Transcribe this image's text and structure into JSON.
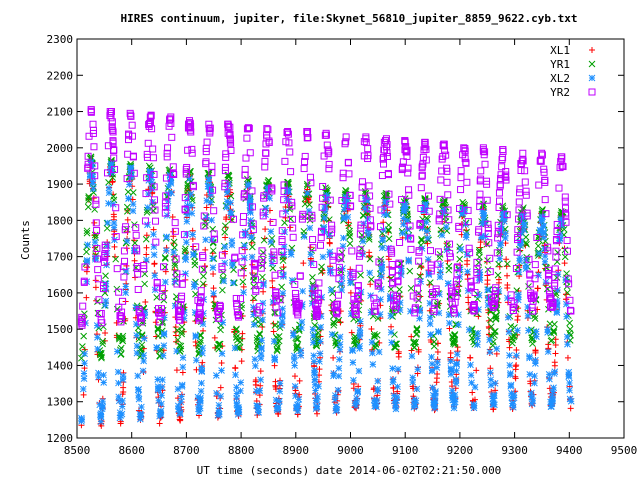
{
  "chart_data": {
    "type": "scatter",
    "title": "HIRES continuum, jupiter, file:Skynet_56810_jupiter_8859_9622.cyb.txt",
    "xlabel": "UT time (seconds) date 2014-06-02T02:21:50.000",
    "ylabel": "Counts",
    "xlim": [
      8500,
      9500
    ],
    "ylim": [
      1200,
      2300
    ],
    "xticks": [
      8500,
      8600,
      8700,
      8800,
      8900,
      9000,
      9100,
      9200,
      9300,
      9400,
      9500
    ],
    "yticks": [
      1200,
      1300,
      1400,
      1500,
      1600,
      1700,
      1800,
      1900,
      2000,
      2100,
      2200,
      2300
    ],
    "grid": false,
    "legend_position": "top-right",
    "pulse_centers": [
      8526,
      8562,
      8598,
      8634,
      8670,
      8706,
      8741,
      8777,
      8813,
      8849,
      8885,
      8921,
      8956,
      8992,
      9028,
      9064,
      9100,
      9136,
      9171,
      9207,
      9243,
      9279,
      9315,
      9350,
      9386
    ],
    "series": [
      {
        "name": "XL1",
        "marker": "plus",
        "color": "#ff0000",
        "minima": [
          1235,
          1240,
          1245,
          1250,
          1255,
          1258,
          1262,
          1265,
          1268,
          1270,
          1273,
          1275,
          1277,
          1280,
          1282,
          1284,
          1285,
          1286,
          1287,
          1288,
          1289,
          1290,
          1290,
          1290,
          1290
        ],
        "maxima": [
          1960,
          1950,
          1940,
          1935,
          1925,
          1920,
          1915,
          1905,
          1900,
          1895,
          1890,
          1880,
          1875,
          1870,
          1860,
          1855,
          1850,
          1845,
          1840,
          1835,
          1830,
          1825,
          1820,
          1815,
          1810
        ]
      },
      {
        "name": "YR1",
        "marker": "cross",
        "color": "#00a000",
        "minima": [
          1420,
          1430,
          1430,
          1435,
          1440,
          1440,
          1445,
          1445,
          1450,
          1450,
          1450,
          1455,
          1455,
          1455,
          1460,
          1460,
          1460,
          1460,
          1465,
          1465,
          1465,
          1465,
          1470,
          1470,
          1470
        ],
        "maxima": [
          1970,
          1960,
          1955,
          1945,
          1940,
          1930,
          1925,
          1920,
          1910,
          1905,
          1900,
          1895,
          1885,
          1880,
          1875,
          1870,
          1860,
          1855,
          1850,
          1845,
          1840,
          1835,
          1830,
          1825,
          1820
        ]
      },
      {
        "name": "XL2",
        "marker": "star",
        "color": "#1e90ff",
        "minima": [
          1255,
          1258,
          1262,
          1265,
          1268,
          1270,
          1272,
          1275,
          1278,
          1280,
          1282,
          1284,
          1285,
          1287,
          1288,
          1289,
          1290,
          1291,
          1292,
          1292,
          1293,
          1293,
          1294,
          1294,
          1294
        ],
        "maxima": [
          1960,
          1950,
          1940,
          1930,
          1925,
          1915,
          1910,
          1900,
          1895,
          1890,
          1880,
          1875,
          1870,
          1860,
          1855,
          1850,
          1845,
          1840,
          1830,
          1825,
          1820,
          1815,
          1810,
          1805,
          1800
        ]
      },
      {
        "name": "YR2",
        "marker": "square",
        "color": "#c000ff",
        "minima": [
          1520,
          1525,
          1530,
          1530,
          1535,
          1535,
          1540,
          1540,
          1540,
          1545,
          1545,
          1545,
          1550,
          1550,
          1550,
          1550,
          1555,
          1555,
          1555,
          1555,
          1560,
          1560,
          1560,
          1560,
          1560
        ],
        "maxima": [
          2100,
          2095,
          2090,
          2085,
          2080,
          2070,
          2065,
          2060,
          2055,
          2050,
          2045,
          2040,
          2035,
          2030,
          2025,
          2020,
          2015,
          2010,
          2005,
          2000,
          1995,
          1990,
          1985,
          1980,
          1970
        ]
      }
    ]
  }
}
